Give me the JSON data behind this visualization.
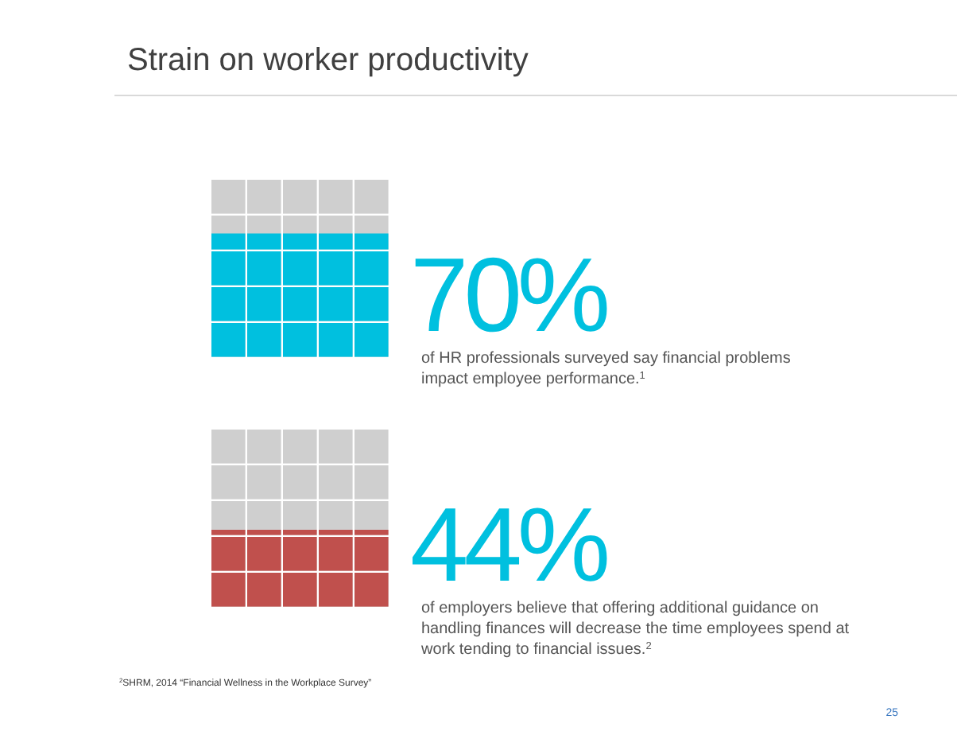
{
  "chart_data": [
    {
      "type": "other",
      "title": "Strain on worker productivity",
      "values": [
        70
      ],
      "value_labels": [
        "70%"
      ],
      "color": "#00c0df",
      "annotations": [
        "of HR professionals surveyed say financial problems impact employee performance.$^{1}$"
      ]
    },
    {
      "type": "other",
      "values": [
        44
      ],
      "value_labels": [
        "44%"
      ],
      "color": "#c0504d",
      "annotations": [
        "of employers believe that offering additional guidance on handling finances will decrease the time employees spend at work tending to financial issues.$^{2}$",
        "$^{2}$SHRM, 2014 “Financial Wellness in the Workplace Survey”",
        "25"
      ]
    }
  ]
}
